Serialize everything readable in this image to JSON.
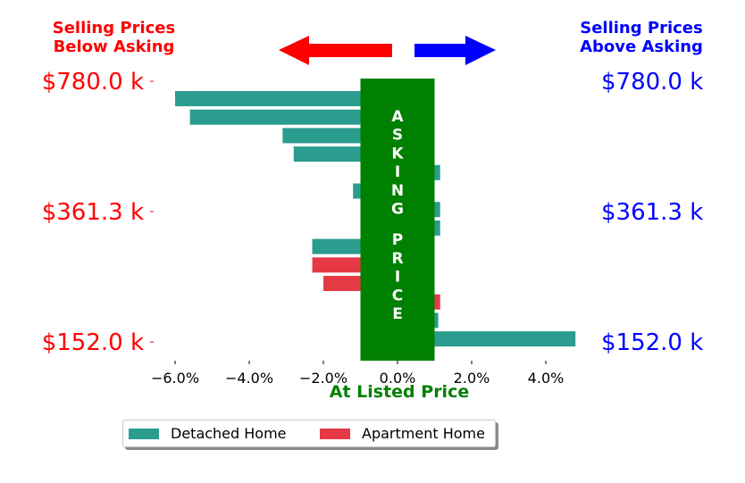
{
  "header": {
    "left_line1": "Selling Prices",
    "left_line2": "Below Asking",
    "right_line1": "Selling Prices",
    "right_line2": "Above Asking"
  },
  "colors": {
    "detached": "#2a9d8f",
    "apartment": "#e63946",
    "asking_band": "#008000",
    "left_text": "#ff0000",
    "right_text": "#0000ff",
    "arrow_left": "#ff0000",
    "arrow_right": "#0000ff"
  },
  "legend": {
    "detached_label": "Detached Home",
    "apartment_label": "Apartment Home"
  },
  "chart_data": {
    "type": "bar",
    "orientation": "horizontal",
    "xlabel": "At Listed Price",
    "xlim": [
      -6.6,
      4.8
    ],
    "x_ticks": [
      -6,
      -4,
      -2,
      0,
      2,
      4
    ],
    "x_tick_labels": [
      "−6.0%",
      "−4.0%",
      "−2.0%",
      "0.0%",
      "2.0%",
      "4.0%"
    ],
    "y_tick_labels_left": [
      "$780.0 k",
      "$361.3 k",
      "$152.0 k"
    ],
    "y_tick_labels_right": [
      "$780.0 k",
      "$361.3 k",
      "$152.0 k"
    ],
    "band": {
      "label": "ASKING PRICE",
      "x_range": [
        -1.0,
        1.0
      ]
    },
    "series": [
      {
        "name": "Detached Home",
        "color_key": "detached"
      },
      {
        "name": "Apartment Home",
        "color_key": "apartment"
      }
    ],
    "bars": [
      {
        "series": "Detached Home",
        "value": -6.0
      },
      {
        "series": "Detached Home",
        "value": -5.6
      },
      {
        "series": "Detached Home",
        "value": -3.1
      },
      {
        "series": "Detached Home",
        "value": -2.8
      },
      {
        "series": "Detached Home",
        "value": 1.15
      },
      {
        "series": "Detached Home",
        "value": -1.2
      },
      {
        "series": "Detached Home",
        "value": 1.15
      },
      {
        "series": "Detached Home",
        "value": 1.15
      },
      {
        "series": "Detached Home",
        "value": -2.3
      },
      {
        "series": "Apartment Home",
        "value": -2.3
      },
      {
        "series": "Apartment Home",
        "value": -2.0
      },
      {
        "series": "Apartment Home",
        "value": 1.15
      },
      {
        "series": "Detached Home",
        "value": 1.1
      },
      {
        "series": "Detached Home",
        "value": 4.8
      }
    ]
  }
}
